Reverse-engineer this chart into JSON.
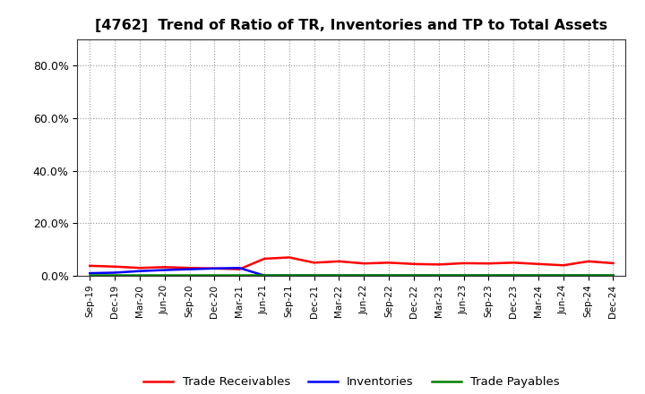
{
  "title": "[4762]  Trend of Ratio of TR, Inventories and TP to Total Assets",
  "title_fontsize": 11.5,
  "background_color": "#ffffff",
  "plot_bg_color": "#ffffff",
  "grid_color": "#999999",
  "xlabels": [
    "Sep-19",
    "Dec-19",
    "Mar-20",
    "Jun-20",
    "Sep-20",
    "Dec-20",
    "Mar-21",
    "Jun-21",
    "Sep-21",
    "Dec-21",
    "Mar-22",
    "Jun-22",
    "Sep-22",
    "Dec-22",
    "Mar-23",
    "Jun-23",
    "Sep-23",
    "Dec-23",
    "Mar-24",
    "Jun-24",
    "Sep-24",
    "Dec-24"
  ],
  "trade_receivables": [
    0.038,
    0.035,
    0.03,
    0.033,
    0.03,
    0.028,
    0.025,
    0.065,
    0.07,
    0.05,
    0.055,
    0.047,
    0.05,
    0.045,
    0.043,
    0.048,
    0.047,
    0.05,
    0.045,
    0.04,
    0.055,
    0.048
  ],
  "inventories": [
    0.01,
    0.012,
    0.018,
    0.022,
    0.025,
    0.028,
    0.03,
    0.001,
    0.001,
    0.001,
    0.001,
    0.001,
    0.001,
    0.001,
    0.001,
    0.001,
    0.001,
    0.001,
    0.001,
    0.001,
    0.001,
    0.001
  ],
  "trade_payables": [
    0.002,
    0.002,
    0.002,
    0.002,
    0.002,
    0.002,
    0.002,
    0.002,
    0.002,
    0.002,
    0.002,
    0.002,
    0.002,
    0.002,
    0.002,
    0.002,
    0.002,
    0.002,
    0.002,
    0.002,
    0.002,
    0.002
  ],
  "tr_color": "#ff0000",
  "inv_color": "#0000ff",
  "tp_color": "#008000",
  "legend_labels": [
    "Trade Receivables",
    "Inventories",
    "Trade Payables"
  ],
  "ylim": [
    0.0,
    0.9
  ],
  "yticks": [
    0.0,
    0.2,
    0.4,
    0.6,
    0.8
  ],
  "yticklabels": [
    "0.0%",
    "20.0%",
    "40.0%",
    "60.0%",
    "80.0%"
  ]
}
